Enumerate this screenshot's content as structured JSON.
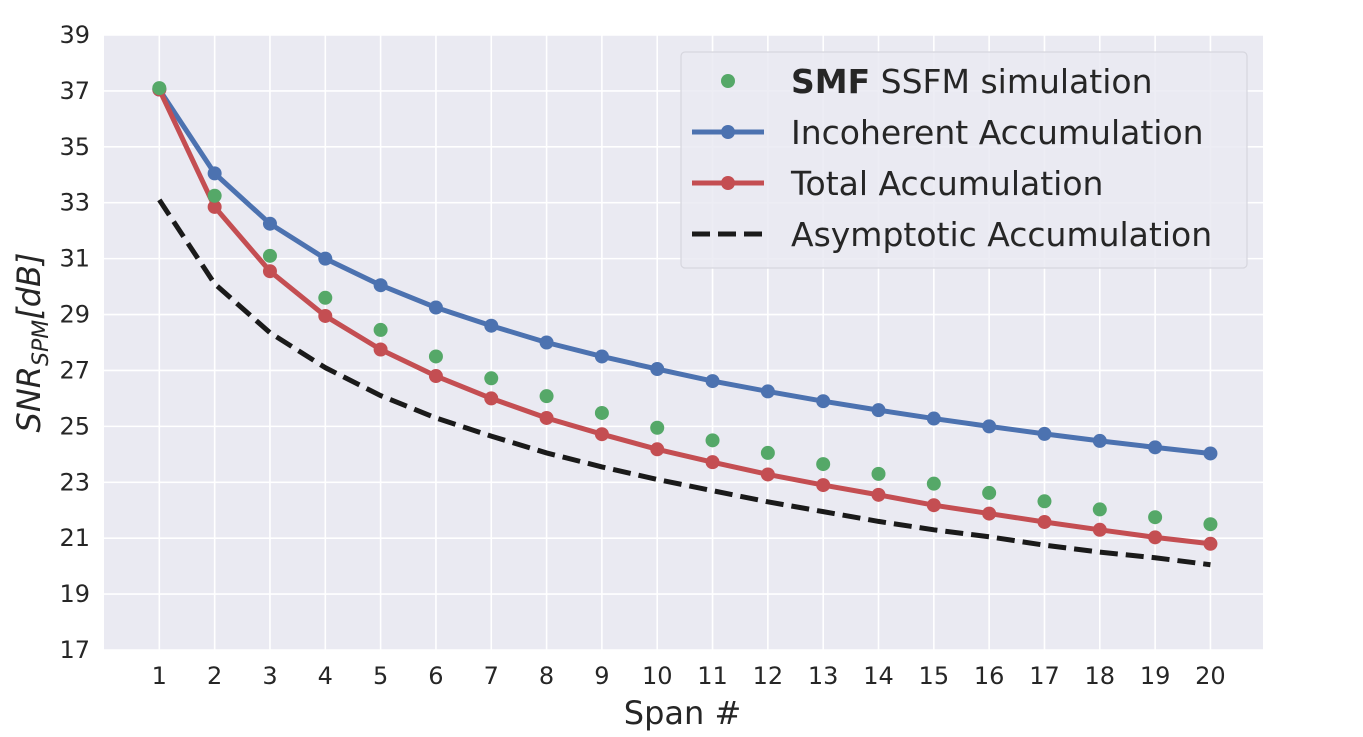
{
  "chart_data": {
    "type": "line",
    "xlabel": "Span #",
    "ylabel_main": "SNR",
    "ylabel_sub": "SPM",
    "ylabel_unit": "[dB]",
    "x": [
      1,
      2,
      3,
      4,
      5,
      6,
      7,
      8,
      9,
      10,
      11,
      12,
      13,
      14,
      15,
      16,
      17,
      18,
      19,
      20
    ],
    "xlim": [
      0.0,
      20.95
    ],
    "ylim": [
      17,
      39
    ],
    "yticks": [
      17,
      19,
      21,
      23,
      25,
      27,
      29,
      31,
      33,
      35,
      37,
      39
    ],
    "grid": true,
    "legend_position": "top-right",
    "series": [
      {
        "name": "Asymptotic Accumulation",
        "style": "dashed",
        "color": "#1a1a1a",
        "values": [
          33.1,
          30.1,
          28.35,
          27.1,
          26.1,
          25.3,
          24.65,
          24.05,
          23.55,
          23.1,
          22.7,
          22.3,
          21.95,
          21.6,
          21.3,
          21.05,
          20.75,
          20.5,
          20.3,
          20.05
        ]
      },
      {
        "name": "Incoherent Accumulation",
        "style": "line-marker",
        "color": "#4c72b0",
        "values": [
          37.05,
          34.05,
          32.25,
          31.0,
          30.05,
          29.25,
          28.6,
          28.0,
          27.5,
          27.05,
          26.62,
          26.25,
          25.9,
          25.58,
          25.28,
          25.0,
          24.73,
          24.48,
          24.25,
          24.03
        ]
      },
      {
        "name": "Total Accumulation",
        "style": "line-marker",
        "color": "#c44e52",
        "values": [
          37.05,
          32.85,
          30.55,
          28.95,
          27.75,
          26.8,
          26.0,
          25.3,
          24.72,
          24.18,
          23.72,
          23.28,
          22.9,
          22.55,
          22.18,
          21.88,
          21.58,
          21.3,
          21.03,
          20.8
        ]
      },
      {
        "name": "SSFM simulation",
        "name_bold_prefix": "SMF",
        "style": "markers",
        "color": "#55a868",
        "values": [
          37.1,
          33.25,
          31.1,
          29.6,
          28.45,
          27.5,
          26.72,
          26.08,
          25.48,
          24.95,
          24.5,
          24.05,
          23.65,
          23.3,
          22.95,
          22.62,
          22.32,
          22.03,
          21.75,
          21.5
        ]
      }
    ]
  }
}
